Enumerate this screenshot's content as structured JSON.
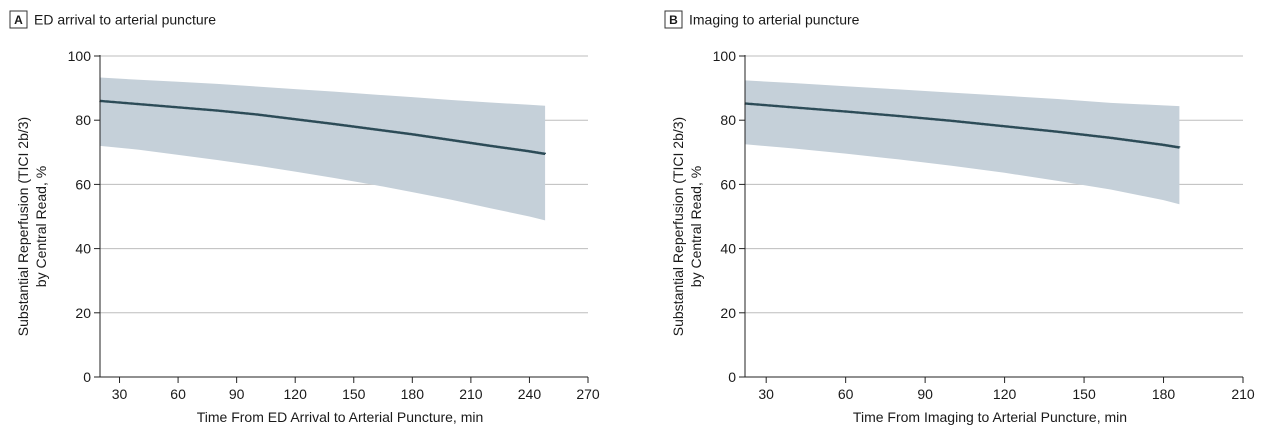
{
  "colors": {
    "band": "#c5d0d9",
    "line": "#2c4b57",
    "grid": "#bdbdbd",
    "axis": "#222222",
    "text": "#1a1a1a",
    "badge_border": "#333333",
    "badge_bg": "#ffffff"
  },
  "chart_data": [
    {
      "type": "line",
      "panel_letter": "A",
      "title": "ED arrival to arterial puncture",
      "xlabel": "Time From ED Arrival to Arterial Puncture, min",
      "ylabel_lines": [
        "Substantial Reperfusion (TICI 2b/3)",
        "by Central Read, %"
      ],
      "xlim": [
        20,
        270
      ],
      "ylim": [
        0,
        100
      ],
      "xticks": [
        30,
        60,
        90,
        120,
        150,
        180,
        210,
        240,
        270
      ],
      "yticks": [
        0,
        20,
        40,
        60,
        80,
        100
      ],
      "grid": "horizontal",
      "series": [
        {
          "x": [
            20,
            40,
            60,
            80,
            100,
            120,
            140,
            160,
            180,
            200,
            220,
            240,
            248
          ],
          "y": [
            86.0,
            85.0,
            84.0,
            83.0,
            81.8,
            80.3,
            78.8,
            77.2,
            75.6,
            73.8,
            72.0,
            70.3,
            69.5
          ],
          "lower": [
            72.0,
            70.8,
            69.2,
            67.6,
            65.9,
            64.0,
            62.0,
            59.9,
            57.6,
            55.2,
            52.6,
            50.0,
            48.8
          ],
          "upper": [
            93.3,
            92.6,
            92.0,
            91.3,
            90.5,
            89.7,
            88.9,
            88.0,
            87.2,
            86.3,
            85.5,
            84.8,
            84.5
          ]
        }
      ]
    },
    {
      "type": "line",
      "panel_letter": "B",
      "title": "Imaging to arterial puncture",
      "xlabel": "Time From Imaging to Arterial Puncture, min",
      "ylabel_lines": [
        "Substantial Reperfusion (TICI 2b/3)",
        "by Central Read, %"
      ],
      "xlim": [
        22,
        210
      ],
      "ylim": [
        0,
        100
      ],
      "xticks": [
        30,
        60,
        90,
        120,
        150,
        180,
        210
      ],
      "yticks": [
        0,
        20,
        40,
        60,
        80,
        100
      ],
      "grid": "horizontal",
      "series": [
        {
          "x": [
            22,
            40,
            60,
            80,
            100,
            120,
            140,
            160,
            180,
            186
          ],
          "y": [
            85.2,
            84.0,
            82.7,
            81.3,
            79.8,
            78.1,
            76.4,
            74.5,
            72.3,
            71.5
          ],
          "lower": [
            72.5,
            71.2,
            69.6,
            67.8,
            65.8,
            63.6,
            61.1,
            58.4,
            55.1,
            53.8
          ],
          "upper": [
            92.4,
            91.6,
            90.6,
            89.6,
            88.6,
            87.6,
            86.6,
            85.4,
            84.6,
            84.4
          ]
        }
      ]
    }
  ]
}
